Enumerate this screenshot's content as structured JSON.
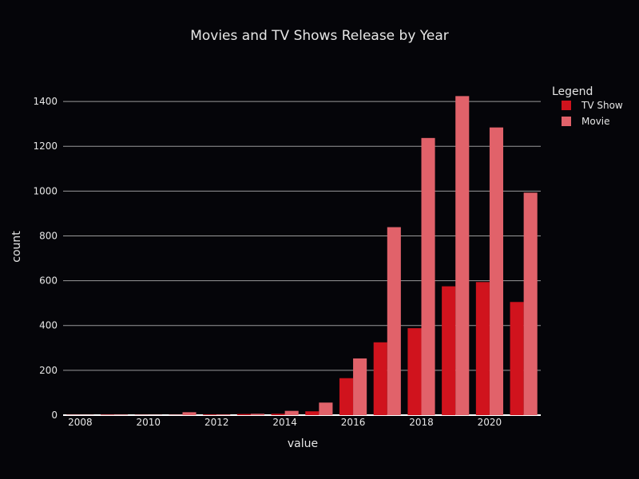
{
  "chart_data": {
    "type": "bar",
    "title": "Movies and TV Shows Release by Year",
    "xlabel": "value",
    "ylabel": "count",
    "x": [
      2008,
      2009,
      2010,
      2011,
      2012,
      2013,
      2014,
      2015,
      2016,
      2017,
      2018,
      2019,
      2020,
      2021
    ],
    "series": [
      {
        "name": "TV Show",
        "color": "#d0131d",
        "values": [
          1,
          2,
          1,
          1,
          3,
          5,
          6,
          17,
          165,
          325,
          388,
          575,
          594,
          505
        ]
      },
      {
        "name": "Movie",
        "color": "#e1626a",
        "values": [
          1,
          2,
          1,
          13,
          3,
          6,
          19,
          56,
          253,
          839,
          1237,
          1424,
          1284,
          993
        ]
      }
    ],
    "xlim": [
      2007.5,
      2021.5
    ],
    "ylim": [
      0,
      1550
    ],
    "x_ticks": [
      2008,
      2010,
      2012,
      2014,
      2016,
      2018,
      2020
    ],
    "y_ticks": [
      0,
      200,
      400,
      600,
      800,
      1000,
      1200,
      1400
    ],
    "grid": true,
    "legend": {
      "title": "Legend",
      "placement": "top-right"
    },
    "background": "#050509",
    "gridline_color": "#9a9a9a"
  }
}
